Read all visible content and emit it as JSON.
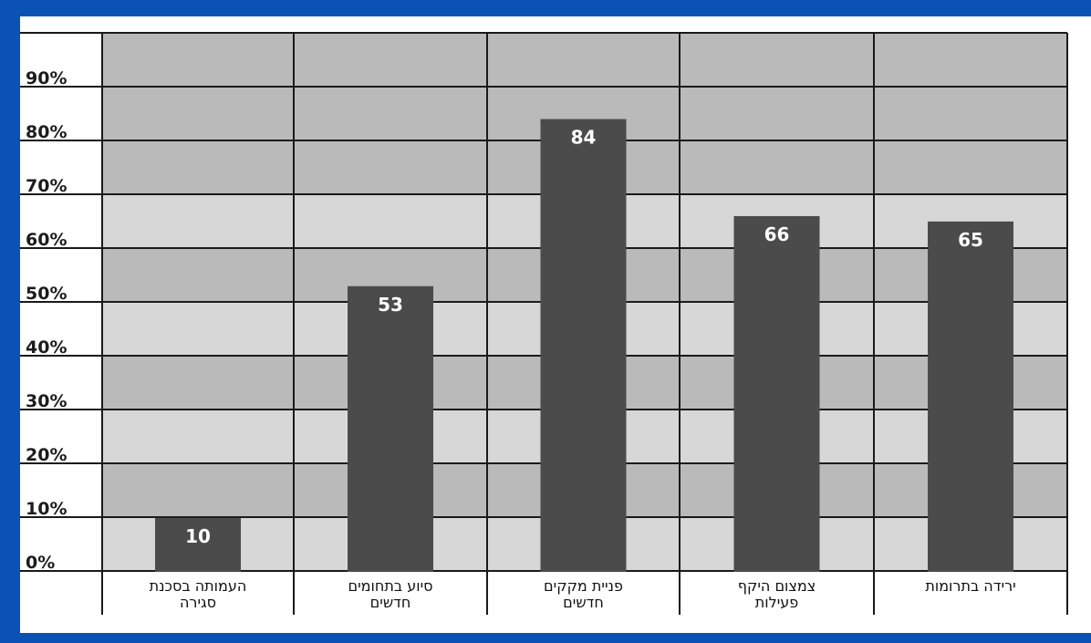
{
  "chart_data": {
    "type": "bar",
    "title": "",
    "xlabel": "",
    "ylabel": "",
    "ylim": [
      0,
      100
    ],
    "yticks": [
      "0%",
      "10%",
      "20%",
      "30%",
      "40%",
      "50%",
      "60%",
      "70%",
      "80%",
      "90%"
    ],
    "categories": [
      [
        "העמותה בסכנת",
        "סגירה"
      ],
      [
        "סיוע בתחומים",
        "חדשים"
      ],
      [
        "פניית מקקים",
        "חדשים"
      ],
      [
        "צמצום היקף",
        "פעילות"
      ],
      [
        "ירידה בתרומות"
      ]
    ],
    "values": [
      10,
      53,
      84,
      66,
      65
    ],
    "data_labels": [
      "10",
      "53",
      "84",
      "66",
      "65"
    ],
    "legend": "none",
    "grid": true,
    "colors": {
      "frame": "#0a53b5",
      "bar": "#4b4b4b",
      "band_light": "#d7d7d7",
      "band_dark": "#bababa",
      "grid": "#1a1a1a"
    }
  }
}
